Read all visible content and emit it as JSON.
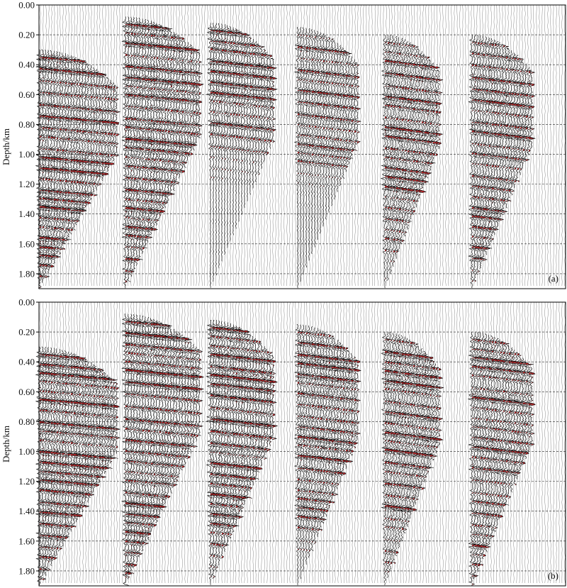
{
  "chart_data": [
    {
      "type": "seismic-wiggle",
      "panel_label": "(a)",
      "ylabel": "Depth/km",
      "ylim": [
        0,
        1.9
      ],
      "yticks": [
        "0.00",
        "0.20",
        "0.40",
        "0.60",
        "0.80",
        "1.00",
        "1.20",
        "1.40",
        "1.60",
        "1.80"
      ],
      "y_reversed": true,
      "grid": true,
      "fill_color": "#b5191c",
      "trace_color": "#000000",
      "gathers": [
        {
          "top_depth": 0.3,
          "bottom_depth": 1.9,
          "strength": 1.0,
          "fade_depth": 1.9
        },
        {
          "top_depth": 0.08,
          "bottom_depth": 1.9,
          "strength": 1.0,
          "fade_depth": 1.7
        },
        {
          "top_depth": 0.12,
          "bottom_depth": 1.9,
          "strength": 0.9,
          "fade_depth": 0.75
        },
        {
          "top_depth": 0.15,
          "bottom_depth": 1.9,
          "strength": 0.85,
          "fade_depth": 0.9
        },
        {
          "top_depth": 0.2,
          "bottom_depth": 1.9,
          "strength": 0.95,
          "fade_depth": 1.45
        },
        {
          "top_depth": 0.2,
          "bottom_depth": 1.9,
          "strength": 0.9,
          "fade_depth": 1.7
        }
      ]
    },
    {
      "type": "seismic-wiggle",
      "panel_label": "(b)",
      "ylabel": "Depth/km",
      "ylim": [
        0,
        1.9
      ],
      "yticks": [
        "0.00",
        "0.20",
        "0.40",
        "0.60",
        "0.80",
        "1.00",
        "1.20",
        "1.40",
        "1.60",
        "1.80"
      ],
      "y_reversed": true,
      "grid": true,
      "fill_color": "#b5191c",
      "trace_color": "#000000",
      "gathers": [
        {
          "top_depth": 0.3,
          "bottom_depth": 1.9,
          "strength": 1.0,
          "fade_depth": 1.9
        },
        {
          "top_depth": 0.08,
          "bottom_depth": 1.9,
          "strength": 1.0,
          "fade_depth": 1.8
        },
        {
          "top_depth": 0.12,
          "bottom_depth": 1.9,
          "strength": 1.0,
          "fade_depth": 1.5
        },
        {
          "top_depth": 0.15,
          "bottom_depth": 1.9,
          "strength": 1.0,
          "fade_depth": 1.3
        },
        {
          "top_depth": 0.2,
          "bottom_depth": 1.9,
          "strength": 1.0,
          "fade_depth": 1.5
        },
        {
          "top_depth": 0.2,
          "bottom_depth": 1.9,
          "strength": 0.95,
          "fade_depth": 1.8
        }
      ]
    }
  ]
}
